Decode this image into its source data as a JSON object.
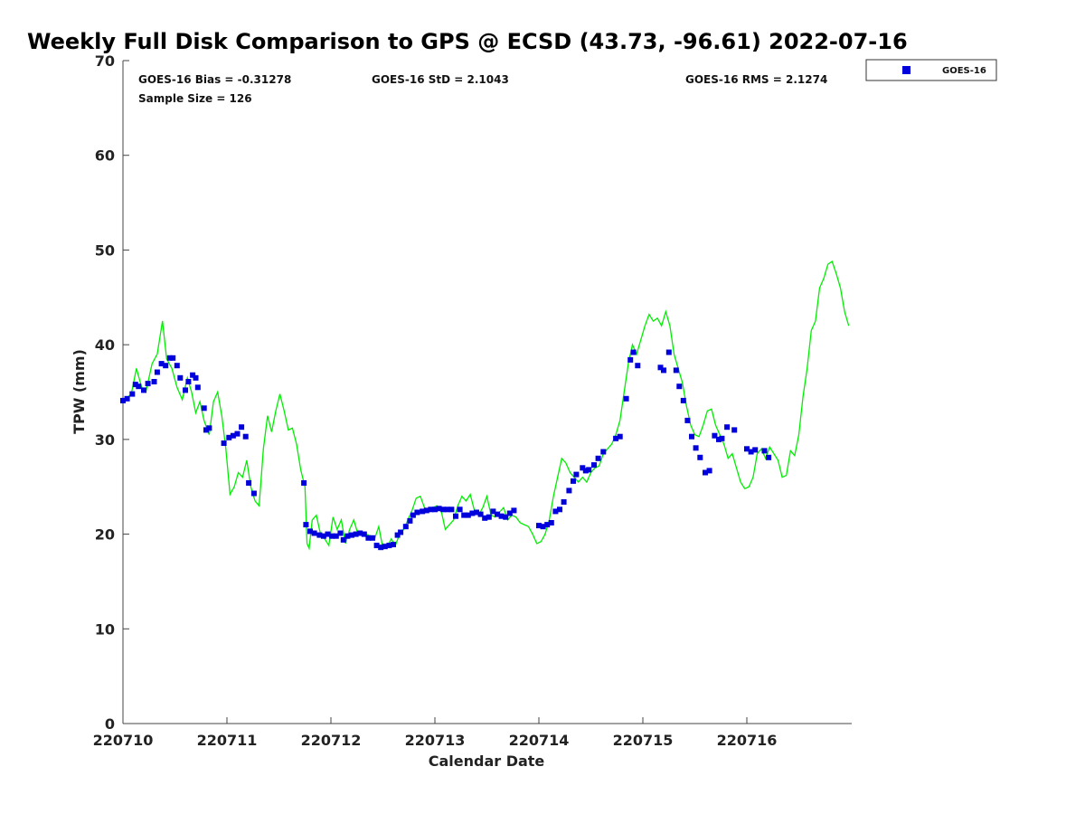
{
  "chart_data": {
    "type": "scatter",
    "title": "Weekly Full Disk Comparison to GPS @ ECSD (43.73, -96.61) 2022-07-16",
    "xlabel": "Calendar Date",
    "ylabel": "TPW (mm)",
    "xlim": [
      0,
      7
    ],
    "ylim": [
      0,
      70
    ],
    "x_tick_labels": [
      "220710",
      "220711",
      "220712",
      "220713",
      "220714",
      "220715",
      "220716"
    ],
    "y_ticks": [
      0,
      10,
      20,
      30,
      40,
      50,
      60,
      70
    ],
    "grid": false,
    "legend_position": "top-right, outside plot",
    "x_unit": "days since 220710 00Z",
    "stats": {
      "bias": "GOES-16 Bias = -0.31278",
      "std": "GOES-16 StD = 2.1043",
      "rms": "GOES-16 RMS = 2.1274",
      "sample": "Sample Size = 126"
    },
    "series": [
      {
        "name": "GPS",
        "kind": "line",
        "color": "#00ee00",
        "points": [
          [
            0.0,
            34.0
          ],
          [
            0.08,
            34.8
          ],
          [
            0.13,
            37.5
          ],
          [
            0.18,
            35.5
          ],
          [
            0.22,
            35.0
          ],
          [
            0.28,
            38.0
          ],
          [
            0.33,
            39.0
          ],
          [
            0.38,
            42.5
          ],
          [
            0.42,
            38.5
          ],
          [
            0.47,
            37.5
          ],
          [
            0.52,
            35.5
          ],
          [
            0.57,
            34.2
          ],
          [
            0.62,
            36.5
          ],
          [
            0.66,
            35.0
          ],
          [
            0.7,
            32.8
          ],
          [
            0.74,
            34.0
          ],
          [
            0.78,
            32.0
          ],
          [
            0.83,
            30.5
          ],
          [
            0.87,
            34.0
          ],
          [
            0.91,
            35.0
          ],
          [
            0.95,
            32.5
          ],
          [
            0.99,
            29.0
          ],
          [
            1.03,
            24.2
          ],
          [
            1.07,
            25.0
          ],
          [
            1.11,
            26.5
          ],
          [
            1.15,
            26.0
          ],
          [
            1.19,
            27.8
          ],
          [
            1.23,
            25.0
          ],
          [
            1.27,
            23.5
          ],
          [
            1.31,
            23.0
          ],
          [
            1.35,
            29.0
          ],
          [
            1.39,
            32.5
          ],
          [
            1.43,
            30.8
          ],
          [
            1.47,
            33.0
          ],
          [
            1.51,
            34.8
          ],
          [
            1.55,
            33.0
          ],
          [
            1.59,
            31.0
          ],
          [
            1.63,
            31.2
          ],
          [
            1.67,
            29.5
          ],
          [
            1.71,
            26.8
          ],
          [
            1.75,
            25.0
          ],
          [
            1.77,
            19.0
          ],
          [
            1.79,
            18.5
          ],
          [
            1.82,
            21.5
          ],
          [
            1.86,
            22.0
          ],
          [
            1.9,
            20.0
          ],
          [
            1.94,
            19.5
          ],
          [
            1.98,
            18.8
          ],
          [
            2.02,
            21.8
          ],
          [
            2.06,
            20.5
          ],
          [
            2.1,
            21.5
          ],
          [
            2.14,
            19.0
          ],
          [
            2.18,
            20.5
          ],
          [
            2.22,
            21.5
          ],
          [
            2.26,
            20.0
          ],
          [
            2.3,
            20.2
          ],
          [
            2.34,
            20.0
          ],
          [
            2.38,
            19.8
          ],
          [
            2.42,
            19.5
          ],
          [
            2.46,
            20.8
          ],
          [
            2.5,
            18.5
          ],
          [
            2.54,
            18.6
          ],
          [
            2.58,
            19.5
          ],
          [
            2.62,
            18.8
          ],
          [
            2.66,
            20.0
          ],
          [
            2.7,
            20.5
          ],
          [
            2.74,
            21.5
          ],
          [
            2.78,
            22.5
          ],
          [
            2.82,
            23.8
          ],
          [
            2.86,
            24.0
          ],
          [
            2.9,
            22.8
          ],
          [
            2.94,
            22.5
          ],
          [
            2.98,
            22.8
          ],
          [
            3.02,
            23.0
          ],
          [
            3.06,
            22.5
          ],
          [
            3.1,
            20.5
          ],
          [
            3.14,
            21.0
          ],
          [
            3.18,
            21.5
          ],
          [
            3.22,
            23.0
          ],
          [
            3.26,
            24.0
          ],
          [
            3.3,
            23.5
          ],
          [
            3.34,
            24.2
          ],
          [
            3.38,
            22.5
          ],
          [
            3.42,
            22.0
          ],
          [
            3.46,
            22.8
          ],
          [
            3.5,
            24.0
          ],
          [
            3.54,
            22.0
          ],
          [
            3.58,
            21.8
          ],
          [
            3.62,
            22.3
          ],
          [
            3.66,
            22.8
          ],
          [
            3.7,
            21.5
          ],
          [
            3.74,
            22.0
          ],
          [
            3.78,
            21.8
          ],
          [
            3.82,
            21.2
          ],
          [
            3.86,
            21.0
          ],
          [
            3.9,
            20.8
          ],
          [
            3.94,
            20.0
          ],
          [
            3.98,
            19.0
          ],
          [
            4.02,
            19.2
          ],
          [
            4.06,
            20.0
          ],
          [
            4.1,
            21.5
          ],
          [
            4.14,
            24.0
          ],
          [
            4.18,
            26.0
          ],
          [
            4.22,
            28.0
          ],
          [
            4.26,
            27.5
          ],
          [
            4.3,
            26.5
          ],
          [
            4.34,
            26.0
          ],
          [
            4.38,
            25.5
          ],
          [
            4.42,
            26.0
          ],
          [
            4.46,
            25.5
          ],
          [
            4.5,
            26.5
          ],
          [
            4.54,
            27.0
          ],
          [
            4.58,
            27.2
          ],
          [
            4.62,
            28.5
          ],
          [
            4.66,
            29.0
          ],
          [
            4.7,
            29.5
          ],
          [
            4.74,
            30.5
          ],
          [
            4.78,
            32.0
          ],
          [
            4.82,
            35.0
          ],
          [
            4.86,
            38.0
          ],
          [
            4.9,
            40.0
          ],
          [
            4.94,
            39.0
          ],
          [
            4.98,
            40.5
          ],
          [
            5.02,
            42.0
          ],
          [
            5.06,
            43.2
          ],
          [
            5.1,
            42.5
          ],
          [
            5.14,
            42.8
          ],
          [
            5.18,
            42.0
          ],
          [
            5.22,
            43.5
          ],
          [
            5.26,
            42.0
          ],
          [
            5.3,
            39.0
          ],
          [
            5.34,
            37.5
          ],
          [
            5.38,
            36.0
          ],
          [
            5.42,
            33.5
          ],
          [
            5.46,
            31.5
          ],
          [
            5.5,
            30.5
          ],
          [
            5.54,
            30.3
          ],
          [
            5.58,
            31.5
          ],
          [
            5.62,
            33.0
          ],
          [
            5.66,
            33.2
          ],
          [
            5.7,
            31.5
          ],
          [
            5.74,
            30.5
          ],
          [
            5.78,
            29.5
          ],
          [
            5.82,
            28.0
          ],
          [
            5.86,
            28.5
          ],
          [
            5.9,
            27.0
          ],
          [
            5.94,
            25.5
          ],
          [
            5.98,
            24.8
          ],
          [
            6.02,
            25.0
          ],
          [
            6.06,
            26.0
          ],
          [
            6.1,
            28.5
          ],
          [
            6.14,
            29.0
          ],
          [
            6.18,
            28.0
          ],
          [
            6.22,
            29.2
          ],
          [
            6.26,
            28.5
          ],
          [
            6.3,
            27.8
          ],
          [
            6.34,
            26.0
          ],
          [
            6.38,
            26.2
          ],
          [
            6.42,
            28.8
          ],
          [
            6.46,
            28.3
          ],
          [
            6.5,
            30.5
          ],
          [
            6.54,
            34.5
          ],
          [
            6.58,
            37.5
          ],
          [
            6.62,
            41.5
          ],
          [
            6.66,
            42.5
          ],
          [
            6.7,
            46.0
          ],
          [
            6.74,
            47.0
          ],
          [
            6.78,
            48.5
          ],
          [
            6.82,
            48.8
          ],
          [
            6.86,
            47.5
          ],
          [
            6.9,
            46.0
          ],
          [
            6.94,
            43.5
          ],
          [
            6.98,
            42.0
          ]
        ]
      },
      {
        "name": "GOES-16",
        "kind": "markers",
        "color": "#0000dd",
        "points": [
          [
            0.0,
            34.1
          ],
          [
            0.04,
            34.3
          ],
          [
            0.09,
            34.8
          ],
          [
            0.12,
            35.8
          ],
          [
            0.15,
            35.6
          ],
          [
            0.2,
            35.2
          ],
          [
            0.24,
            35.9
          ],
          [
            0.3,
            36.1
          ],
          [
            0.33,
            37.1
          ],
          [
            0.37,
            38.0
          ],
          [
            0.41,
            37.8
          ],
          [
            0.45,
            38.6
          ],
          [
            0.48,
            38.6
          ],
          [
            0.52,
            37.8
          ],
          [
            0.55,
            36.5
          ],
          [
            0.6,
            35.2
          ],
          [
            0.63,
            36.1
          ],
          [
            0.67,
            36.8
          ],
          [
            0.7,
            36.5
          ],
          [
            0.72,
            35.5
          ],
          [
            0.78,
            33.3
          ],
          [
            0.8,
            31.0
          ],
          [
            0.83,
            31.2
          ],
          [
            0.97,
            29.6
          ],
          [
            1.02,
            30.2
          ],
          [
            1.06,
            30.4
          ],
          [
            1.1,
            30.6
          ],
          [
            1.14,
            31.3
          ],
          [
            1.18,
            30.3
          ],
          [
            1.21,
            25.4
          ],
          [
            1.26,
            24.3
          ],
          [
            1.74,
            25.4
          ],
          [
            1.76,
            21.0
          ],
          [
            1.8,
            20.3
          ],
          [
            1.84,
            20.1
          ],
          [
            1.89,
            19.9
          ],
          [
            1.93,
            19.8
          ],
          [
            1.97,
            20.0
          ],
          [
            2.01,
            19.8
          ],
          [
            2.05,
            19.8
          ],
          [
            2.09,
            20.1
          ],
          [
            2.12,
            19.4
          ],
          [
            2.16,
            19.8
          ],
          [
            2.2,
            19.9
          ],
          [
            2.24,
            20.0
          ],
          [
            2.28,
            20.1
          ],
          [
            2.32,
            20.0
          ],
          [
            2.36,
            19.6
          ],
          [
            2.4,
            19.6
          ],
          [
            2.44,
            18.8
          ],
          [
            2.48,
            18.6
          ],
          [
            2.52,
            18.7
          ],
          [
            2.56,
            18.8
          ],
          [
            2.6,
            18.9
          ],
          [
            2.64,
            19.9
          ],
          [
            2.67,
            20.2
          ],
          [
            2.72,
            20.8
          ],
          [
            2.76,
            21.4
          ],
          [
            2.79,
            22.0
          ],
          [
            2.83,
            22.3
          ],
          [
            2.88,
            22.4
          ],
          [
            2.92,
            22.5
          ],
          [
            2.96,
            22.6
          ],
          [
            3.0,
            22.6
          ],
          [
            3.04,
            22.7
          ],
          [
            3.08,
            22.6
          ],
          [
            3.12,
            22.6
          ],
          [
            3.16,
            22.6
          ],
          [
            3.2,
            21.9
          ],
          [
            3.24,
            22.6
          ],
          [
            3.28,
            22.0
          ],
          [
            3.32,
            22.0
          ],
          [
            3.36,
            22.2
          ],
          [
            3.4,
            22.3
          ],
          [
            3.44,
            22.1
          ],
          [
            3.48,
            21.7
          ],
          [
            3.52,
            21.8
          ],
          [
            3.56,
            22.4
          ],
          [
            3.6,
            22.1
          ],
          [
            3.64,
            21.9
          ],
          [
            3.68,
            21.8
          ],
          [
            3.72,
            22.2
          ],
          [
            3.76,
            22.5
          ],
          [
            4.0,
            20.9
          ],
          [
            4.04,
            20.8
          ],
          [
            4.08,
            21.0
          ],
          [
            4.12,
            21.2
          ],
          [
            4.16,
            22.4
          ],
          [
            4.2,
            22.6
          ],
          [
            4.24,
            23.4
          ],
          [
            4.29,
            24.6
          ],
          [
            4.33,
            25.6
          ],
          [
            4.36,
            26.3
          ],
          [
            4.42,
            27.0
          ],
          [
            4.45,
            26.7
          ],
          [
            4.48,
            26.8
          ],
          [
            4.53,
            27.3
          ],
          [
            4.57,
            28.0
          ],
          [
            4.62,
            28.7
          ],
          [
            4.74,
            30.1
          ],
          [
            4.78,
            30.3
          ],
          [
            4.84,
            34.3
          ],
          [
            4.88,
            38.4
          ],
          [
            4.91,
            39.2
          ],
          [
            4.95,
            37.8
          ],
          [
            5.17,
            37.6
          ],
          [
            5.2,
            37.3
          ],
          [
            5.25,
            39.2
          ],
          [
            5.32,
            37.3
          ],
          [
            5.35,
            35.6
          ],
          [
            5.39,
            34.1
          ],
          [
            5.43,
            32.0
          ],
          [
            5.47,
            30.3
          ],
          [
            5.51,
            29.1
          ],
          [
            5.55,
            28.1
          ],
          [
            5.6,
            26.5
          ],
          [
            5.64,
            26.7
          ],
          [
            5.69,
            30.4
          ],
          [
            5.73,
            30.0
          ],
          [
            5.76,
            30.1
          ],
          [
            5.81,
            31.3
          ],
          [
            5.88,
            31.0
          ],
          [
            6.0,
            29.0
          ],
          [
            6.04,
            28.7
          ],
          [
            6.08,
            28.9
          ],
          [
            6.17,
            28.8
          ],
          [
            6.21,
            28.1
          ]
        ]
      }
    ]
  }
}
